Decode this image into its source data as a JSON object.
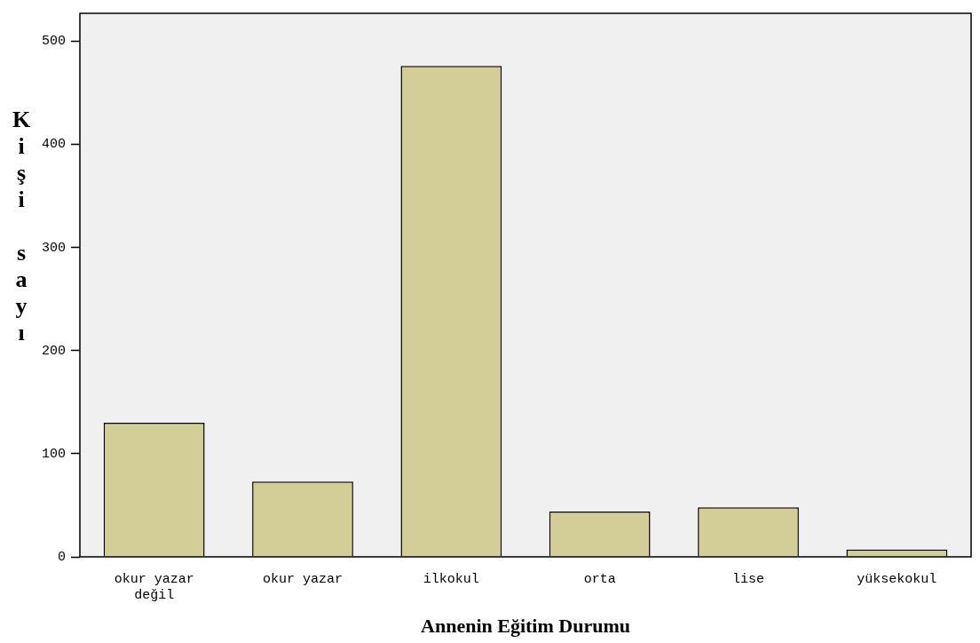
{
  "chart_data": {
    "type": "bar",
    "xlabel": "Annenin Eğitim Durumu",
    "ylabel": "Kişi sayı",
    "categories": [
      "okur yazar değil",
      "okur yazar",
      "ilkokul",
      "orta",
      "lise",
      "yüksekokul"
    ],
    "values": [
      130,
      73,
      476,
      44,
      48,
      7
    ],
    "color": "#d3cd97",
    "ylim": [
      0,
      527
    ],
    "yticks": [
      0,
      100,
      200,
      300,
      400,
      500
    ],
    "grid": false,
    "legend": false
  }
}
